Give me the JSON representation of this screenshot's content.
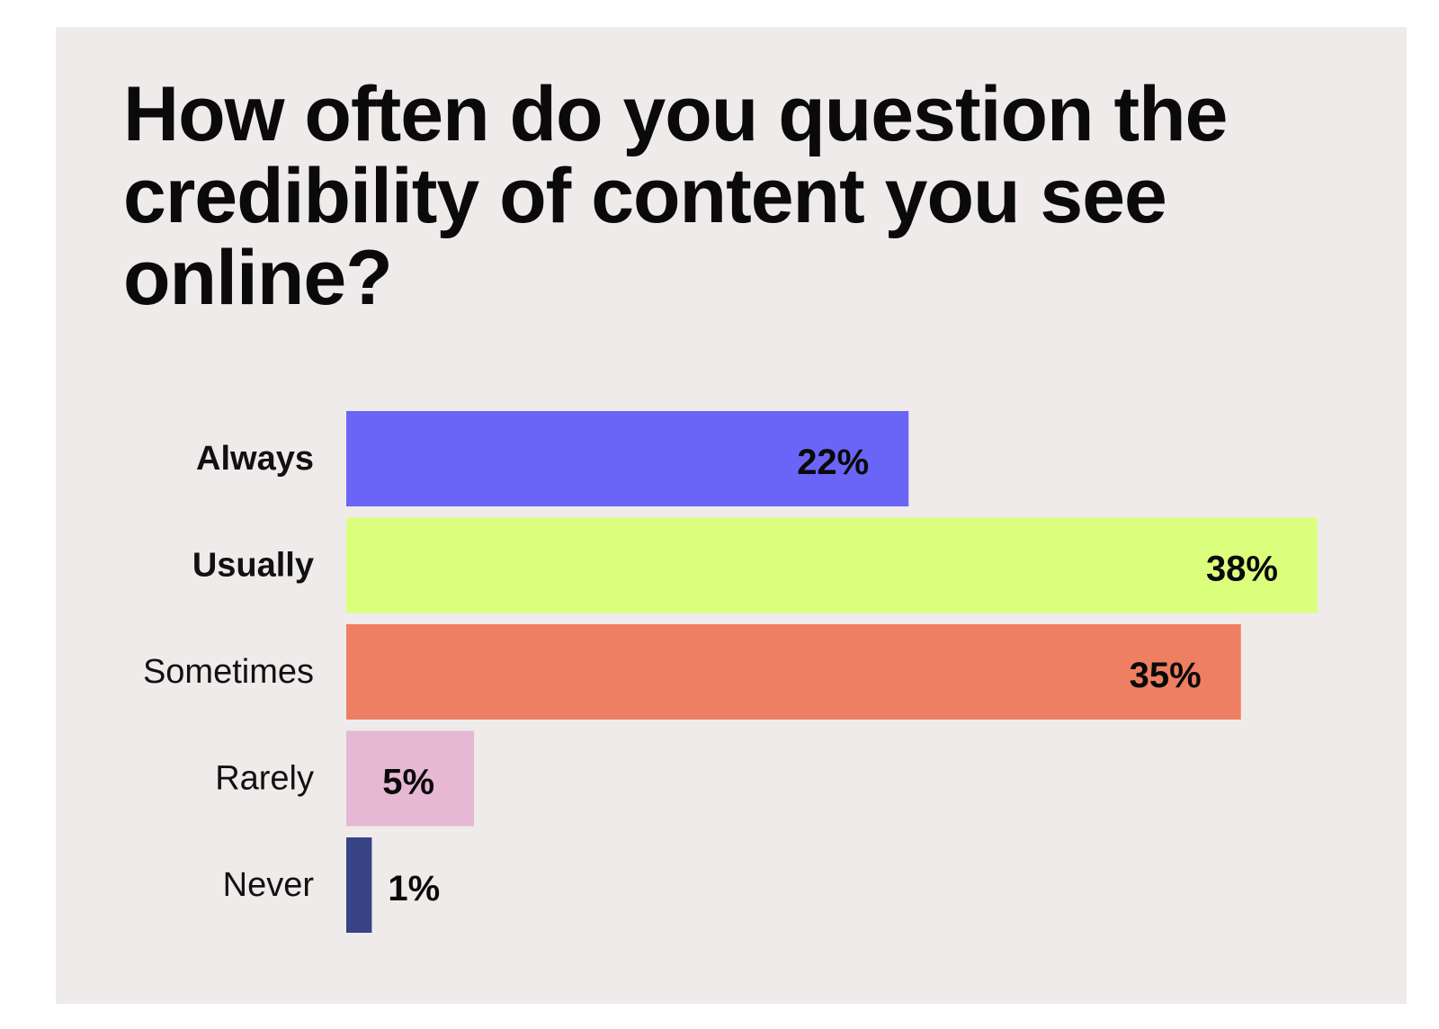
{
  "chart_data": {
    "type": "bar",
    "orientation": "horizontal",
    "title": "How often do you question the credibility of content you see online?",
    "categories": [
      "Always",
      "Usually",
      "Sometimes",
      "Rarely",
      "Never"
    ],
    "values": [
      22,
      38,
      35,
      5,
      1
    ],
    "value_labels": [
      "22%",
      "38%",
      "35%",
      "5%",
      "1%"
    ],
    "colors": [
      "#6a65f7",
      "#dcfe7d",
      "#ef7f63",
      "#e6b8d4",
      "#384385"
    ],
    "bold_categories": [
      "Always",
      "Usually"
    ],
    "xlim": [
      0,
      38
    ],
    "grid": false,
    "legend": "none",
    "background": "#efebea"
  }
}
